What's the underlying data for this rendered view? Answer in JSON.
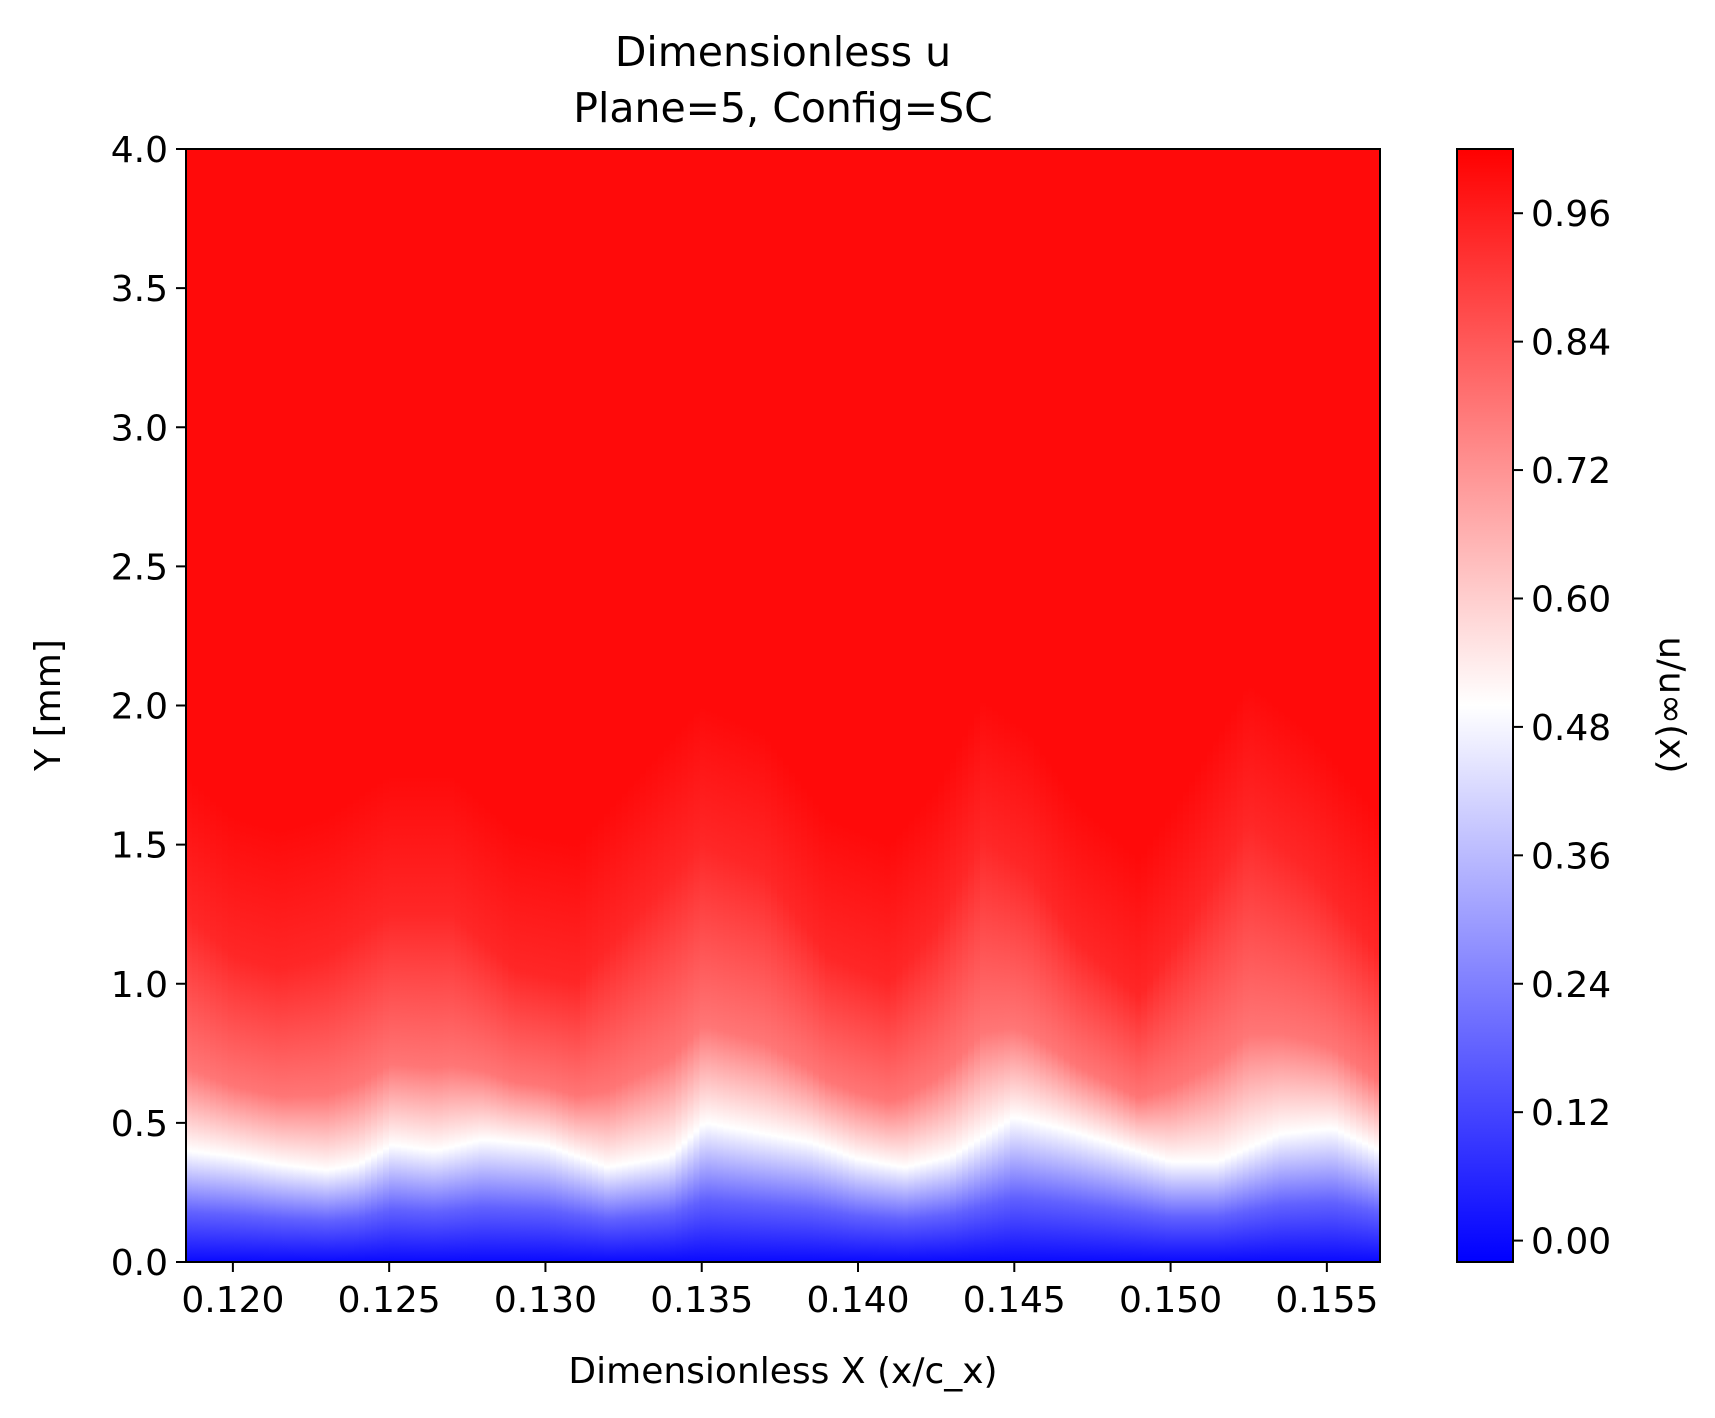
{
  "chart_data": {
    "type": "heatmap",
    "title": "Dimensionless u",
    "subtitle": "Plane=5, Config=SC",
    "xlabel": "Dimensionless X (x/c_x)",
    "ylabel": "Y [mm]",
    "colorbar_label": "u/u∞(x)",
    "xlim": [
      0.1185,
      0.1567
    ],
    "ylim": [
      0.0,
      4.0
    ],
    "x_ticks": [
      0.12,
      0.125,
      0.13,
      0.135,
      0.14,
      0.145,
      0.15,
      0.155
    ],
    "x_tick_labels": [
      "0.120",
      "0.125",
      "0.130",
      "0.135",
      "0.140",
      "0.145",
      "0.150",
      "0.155"
    ],
    "y_ticks": [
      0.0,
      0.5,
      1.0,
      1.5,
      2.0,
      2.5,
      3.0,
      3.5,
      4.0
    ],
    "y_tick_labels": [
      "0.0",
      "0.5",
      "1.0",
      "1.5",
      "2.0",
      "2.5",
      "3.0",
      "3.5",
      "4.0"
    ],
    "colorbar_range": [
      -0.02,
      1.02
    ],
    "colorbar_ticks": [
      0.0,
      0.12,
      0.24,
      0.36,
      0.48,
      0.6,
      0.72,
      0.84,
      0.96
    ],
    "colorbar_tick_labels": [
      "0.00",
      "0.12",
      "0.24",
      "0.36",
      "0.48",
      "0.60",
      "0.72",
      "0.84",
      "0.96"
    ],
    "colormap": "bwr",
    "colors": {
      "low": "#0000ff",
      "mid": "#ffffff",
      "high": "#ff0000"
    },
    "field": {
      "description": "u/u∞ vs Y: near 0 at wall, 0.5 along a wavy contour, ~1 above",
      "half_velocity_contour": {
        "x": [
          0.1185,
          0.12,
          0.1215,
          0.123,
          0.124,
          0.1251,
          0.1265,
          0.128,
          0.13,
          0.132,
          0.134,
          0.1351,
          0.1365,
          0.1385,
          0.14,
          0.1415,
          0.143,
          0.145,
          0.1465,
          0.148,
          0.15,
          0.1515,
          0.1535,
          0.1552,
          0.1567
        ],
        "y": [
          0.4,
          0.38,
          0.35,
          0.33,
          0.35,
          0.42,
          0.4,
          0.44,
          0.42,
          0.34,
          0.38,
          0.5,
          0.47,
          0.43,
          0.37,
          0.34,
          0.38,
          0.52,
          0.48,
          0.43,
          0.36,
          0.36,
          0.46,
          0.48,
          0.4
        ]
      },
      "bulge_top_contour": {
        "x": [
          0.1185,
          0.12,
          0.1215,
          0.123,
          0.125,
          0.127,
          0.129,
          0.131,
          0.133,
          0.135,
          0.137,
          0.139,
          0.141,
          0.1425,
          0.144,
          0.1455,
          0.147,
          0.149,
          0.1505,
          0.1525,
          0.1545,
          0.1567
        ],
        "y": [
          1.25,
          1.1,
          1.05,
          1.1,
          1.25,
          1.25,
          1.05,
          1.0,
          1.25,
          1.5,
          1.4,
          1.1,
          1.0,
          1.2,
          1.52,
          1.4,
          1.15,
          0.95,
          1.2,
          1.58,
          1.4,
          1.1
        ]
      }
    }
  }
}
